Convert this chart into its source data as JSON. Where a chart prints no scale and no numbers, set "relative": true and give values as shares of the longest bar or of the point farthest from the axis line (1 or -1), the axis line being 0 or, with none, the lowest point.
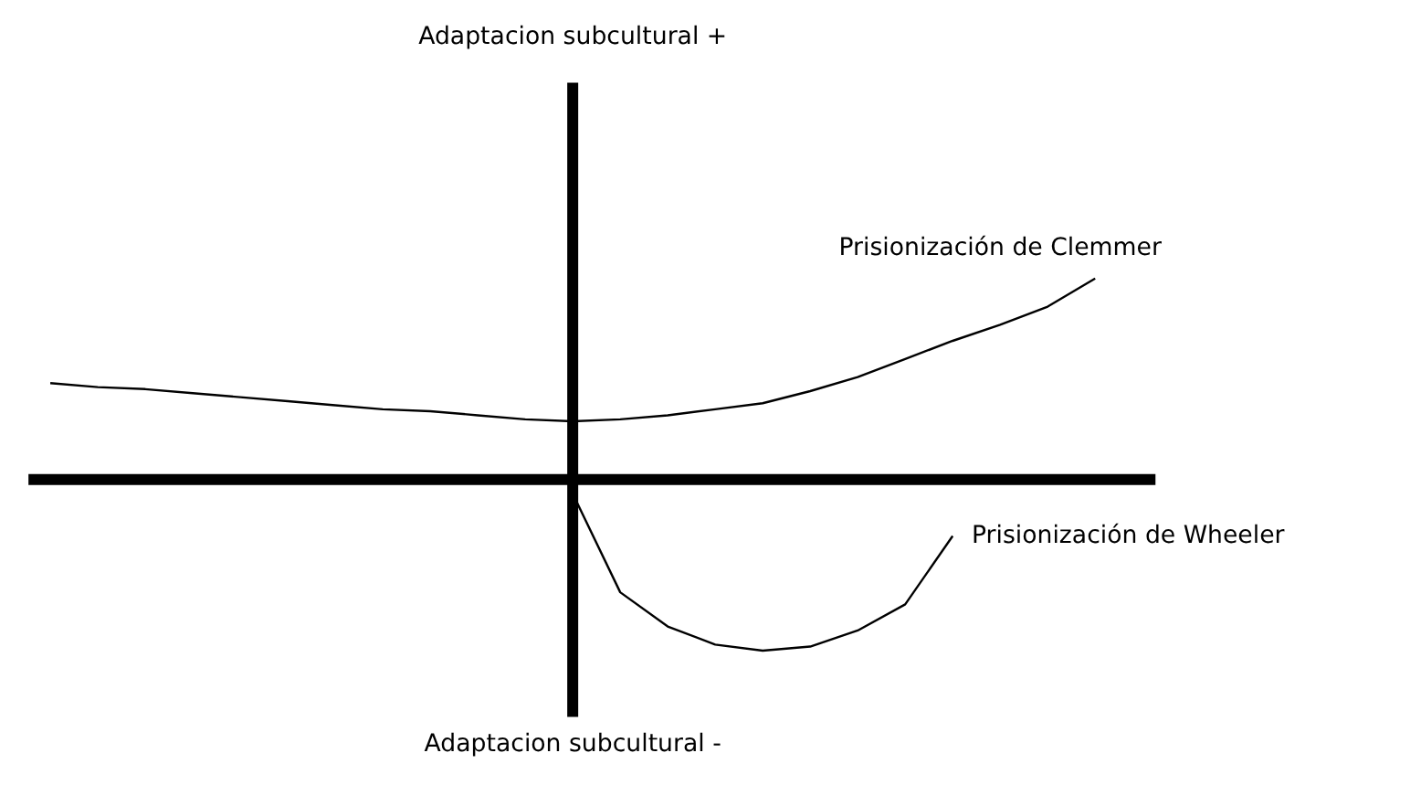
{
  "chart_data": {
    "type": "line",
    "relative": true,
    "annotations": [
      "Adaptacion subcultural +",
      "Adaptacion subcultural -"
    ],
    "categories": [
      null,
      null,
      null,
      null,
      null,
      null,
      null,
      null,
      null,
      null,
      null,
      null,
      null,
      null,
      null,
      null,
      null,
      null,
      null,
      null,
      null,
      null,
      null,
      null
    ],
    "series": [
      {
        "name": "Prisionización de Clemmer",
        "color": "#000000",
        "values": [
          0.48,
          0.46,
          0.45,
          0.43,
          0.41,
          0.39,
          0.37,
          0.35,
          0.34,
          0.32,
          0.3,
          0.29,
          0.3,
          0.32,
          0.35,
          0.38,
          0.44,
          0.51,
          0.6,
          0.69,
          0.77,
          0.86,
          1.0,
          null
        ]
      },
      {
        "name": "Prisionización de Wheeler",
        "color": "#000000",
        "values": [
          null,
          null,
          null,
          null,
          null,
          null,
          null,
          null,
          null,
          null,
          null,
          -0.07,
          -0.56,
          -0.73,
          -0.82,
          -0.85,
          -0.83,
          -0.75,
          -0.62,
          -0.28,
          null,
          null,
          null,
          null
        ]
      }
    ],
    "grid": false
  }
}
